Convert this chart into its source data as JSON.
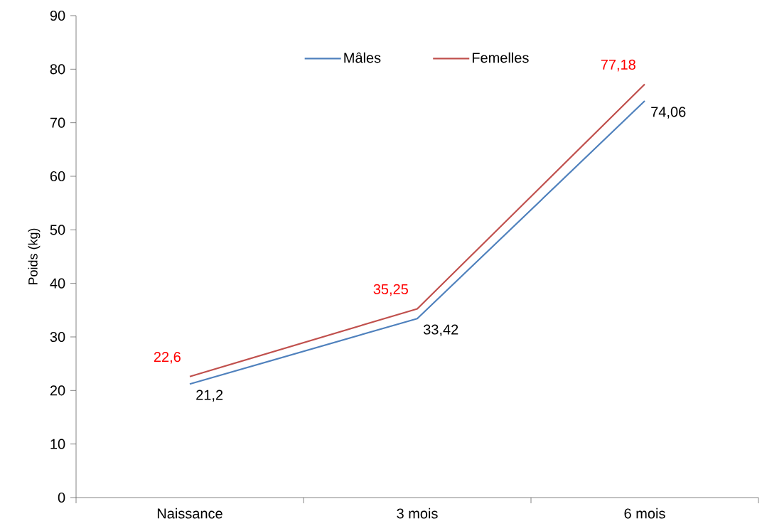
{
  "chart_data": {
    "type": "line",
    "ylabel": "Poids (kg)",
    "categories": [
      "Naissance",
      "3 mois",
      "6 mois"
    ],
    "series": [
      {
        "name": "Mâles",
        "color": "#4f81bd",
        "values": [
          21.2,
          33.42,
          74.06
        ],
        "value_labels": [
          "21,2",
          "33,42",
          "74,06"
        ]
      },
      {
        "name": "Femelles",
        "color": "#c0504d",
        "values": [
          22.6,
          35.25,
          77.18
        ],
        "value_labels": [
          "22,6",
          "35,25",
          "77,18"
        ]
      }
    ],
    "ylim": [
      0,
      90
    ],
    "yticks": [
      0,
      10,
      20,
      30,
      40,
      50,
      60,
      70,
      80,
      90
    ],
    "grid": false,
    "legend": "top",
    "marker": "none",
    "line_style": "solid"
  }
}
